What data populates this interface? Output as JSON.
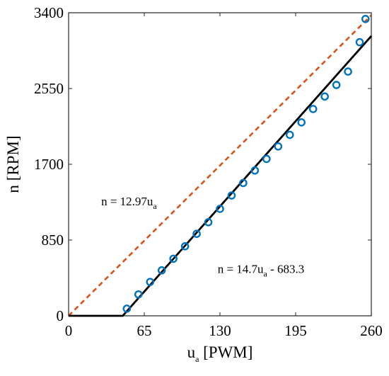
{
  "chart_data": {
    "type": "scatter",
    "xlabel": {
      "base": "u",
      "sub": "a",
      "rest": " [PWM]"
    },
    "ylabel": "n [RPM]",
    "xlim": [
      0,
      260
    ],
    "ylim": [
      0,
      3400
    ],
    "xticks": [
      0,
      65,
      130,
      195,
      260
    ],
    "yticks": [
      0,
      850,
      1700,
      2550,
      3400
    ],
    "grid": false,
    "colors": {
      "measured": "#0072BD",
      "fit": "#000000",
      "ideal": "#D95319"
    },
    "series": [
      {
        "kind": "scatter",
        "x": [
          50,
          60,
          70,
          80,
          90,
          100,
          110,
          120,
          130,
          140,
          150,
          160,
          170,
          180,
          190,
          200,
          210,
          220,
          230,
          240,
          250,
          255
        ],
        "y": [
          80,
          240,
          380,
          510,
          640,
          780,
          920,
          1050,
          1200,
          1350,
          1490,
          1630,
          1760,
          1900,
          2030,
          2170,
          2320,
          2460,
          2590,
          2740,
          3070,
          3330
        ]
      },
      {
        "kind": "line",
        "style": "solid",
        "x": [
          0,
          46.5,
          260
        ],
        "y": [
          0,
          0,
          3138.7
        ]
      },
      {
        "kind": "line",
        "style": "dashed",
        "x": [
          0,
          260
        ],
        "y": [
          0,
          3372.2
        ]
      }
    ],
    "annotations": [
      {
        "id": "ideal",
        "prefix": "n = 12.97u",
        "sub": "a",
        "suffix": "",
        "x": 28,
        "y": 1240
      },
      {
        "id": "fit",
        "prefix": "n = 14.7u",
        "sub": "a",
        "suffix": " - 683.3",
        "x": 128,
        "y": 480
      }
    ]
  }
}
